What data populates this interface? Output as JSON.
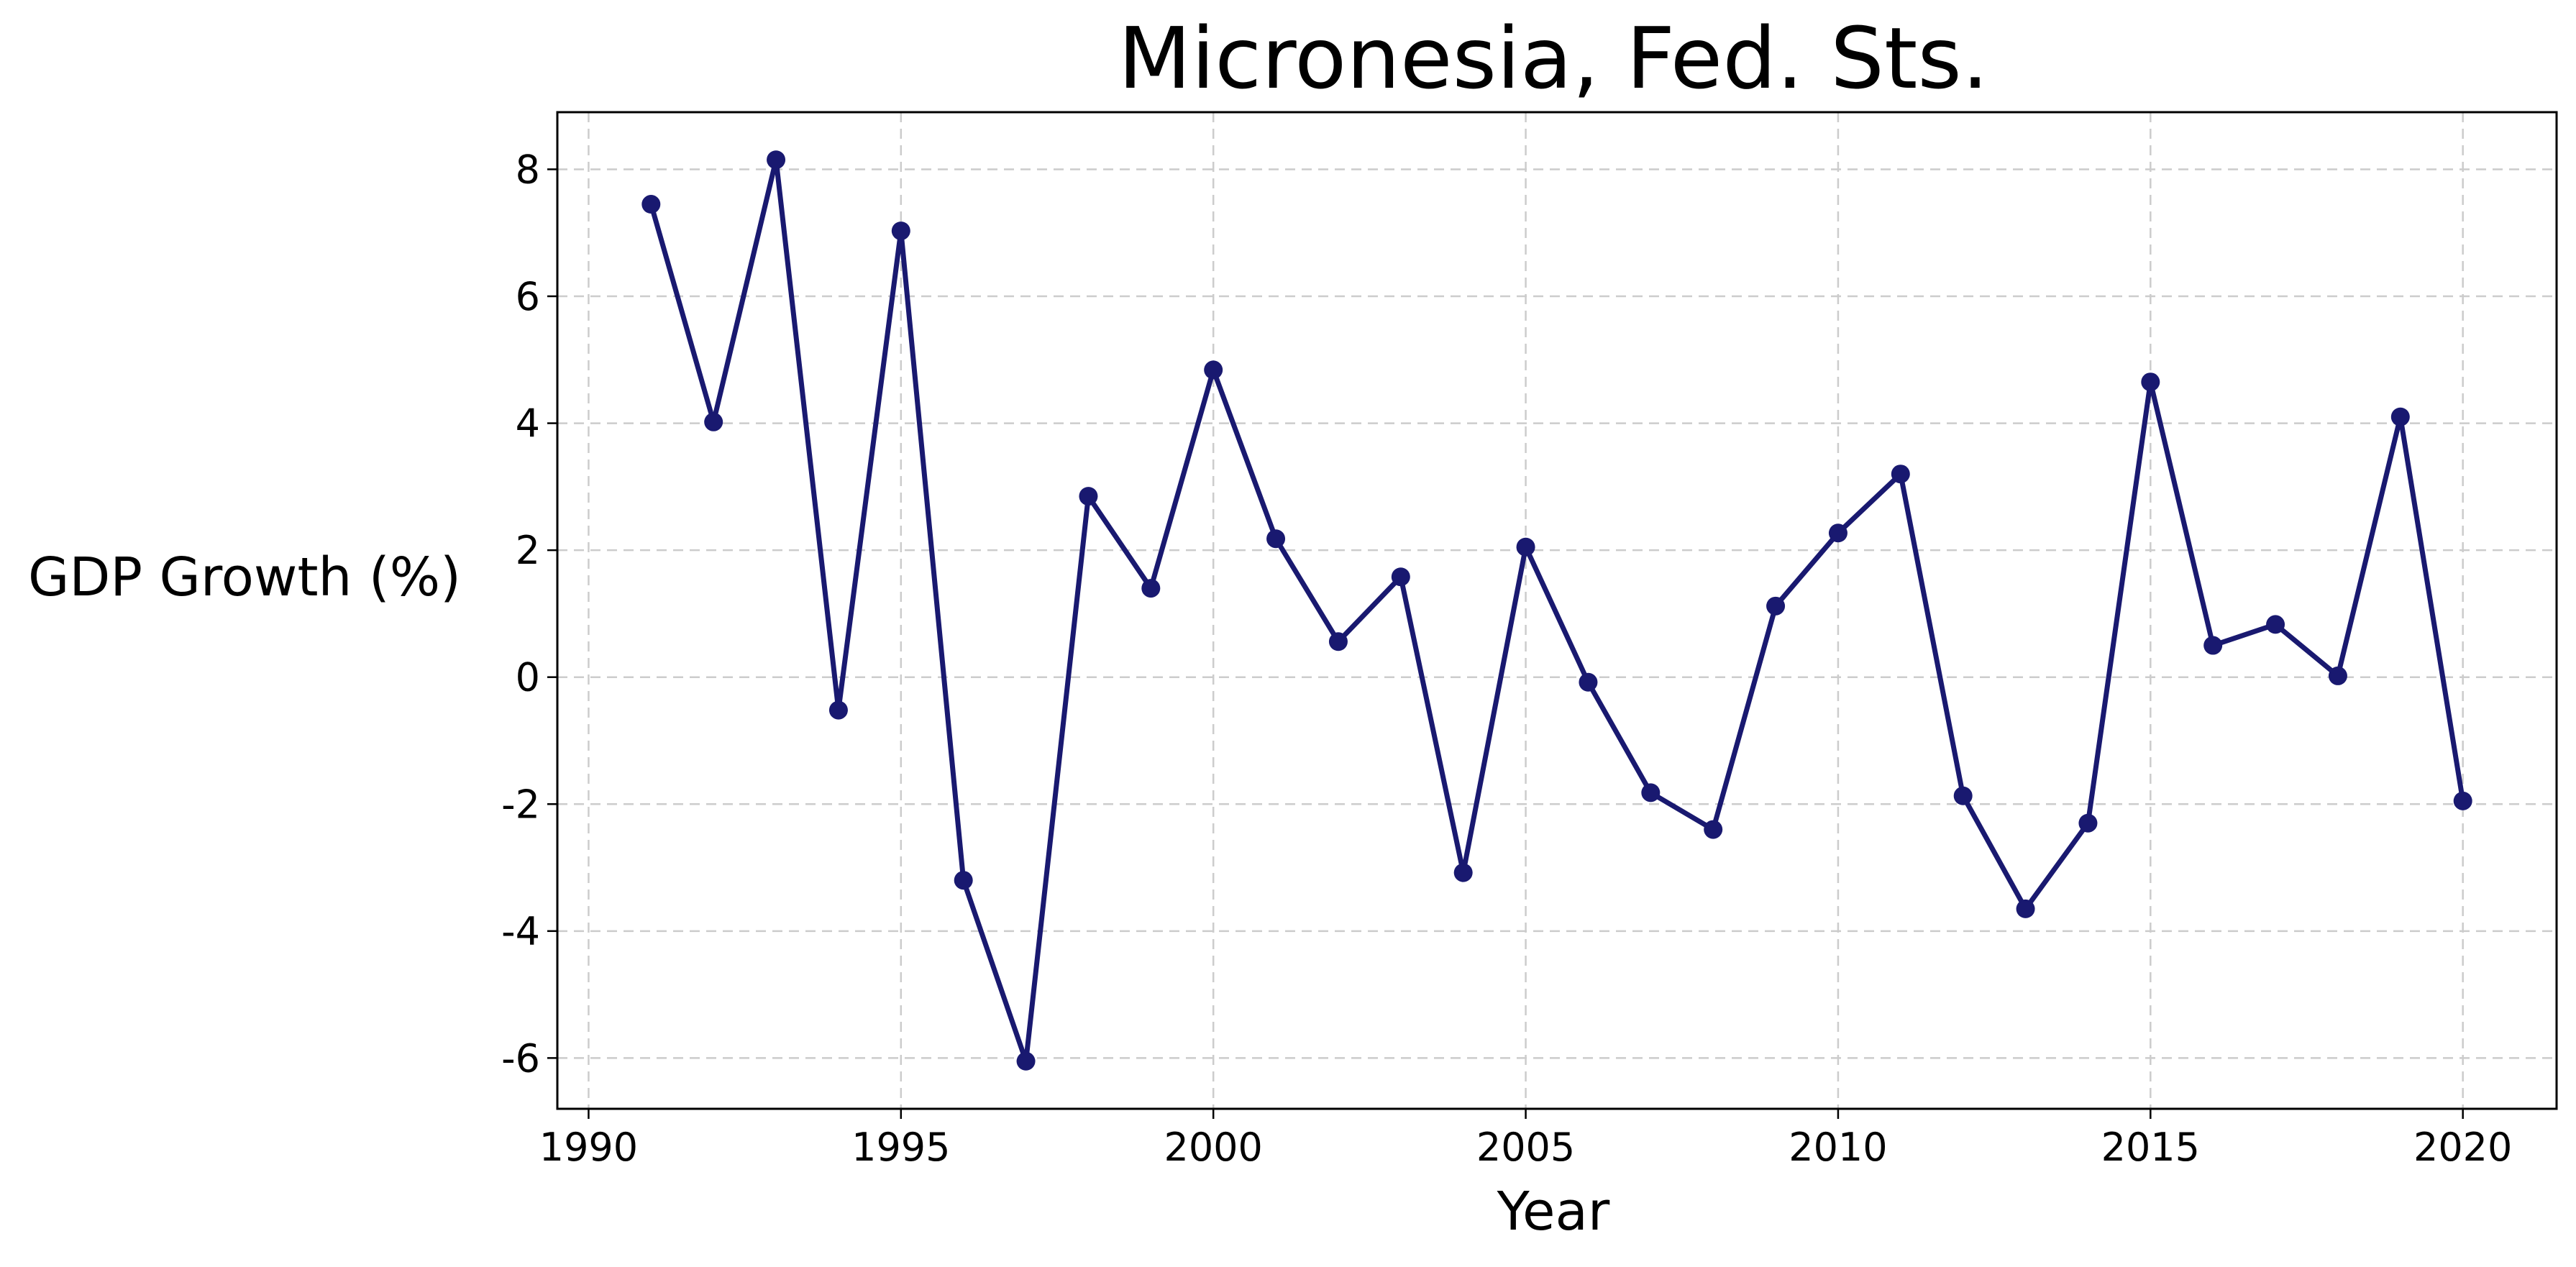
{
  "chart_data": {
    "type": "line",
    "title": "Micronesia, Fed. Sts.",
    "xlabel": "Year",
    "ylabel": "GDP Growth (%)",
    "xlim": [
      1989.5,
      2021.5
    ],
    "ylim": [
      -6.8,
      8.9
    ],
    "xticks": [
      1990,
      1995,
      2000,
      2005,
      2010,
      2015,
      2020
    ],
    "yticks": [
      -6,
      -4,
      -2,
      0,
      2,
      4,
      6,
      8
    ],
    "grid": true,
    "line_color": "#191970",
    "series": [
      {
        "x": [
          1991,
          1992,
          1993,
          1994,
          1995,
          1996,
          1997,
          1998,
          1999,
          2000,
          2001,
          2002,
          2003,
          2004,
          2005,
          2006,
          2007,
          2008,
          2009,
          2010,
          2011,
          2012,
          2013,
          2014,
          2015,
          2016,
          2017,
          2018,
          2019,
          2020
        ],
        "values": [
          7.45,
          4.02,
          8.15,
          -0.52,
          7.03,
          -3.2,
          -6.05,
          2.85,
          1.4,
          4.84,
          2.18,
          0.56,
          1.58,
          -3.08,
          2.05,
          -0.08,
          -1.82,
          -2.4,
          1.12,
          2.27,
          3.2,
          -1.87,
          -3.65,
          -2.3,
          4.65,
          0.5,
          0.83,
          0.02,
          4.1,
          -1.95
        ]
      }
    ]
  }
}
